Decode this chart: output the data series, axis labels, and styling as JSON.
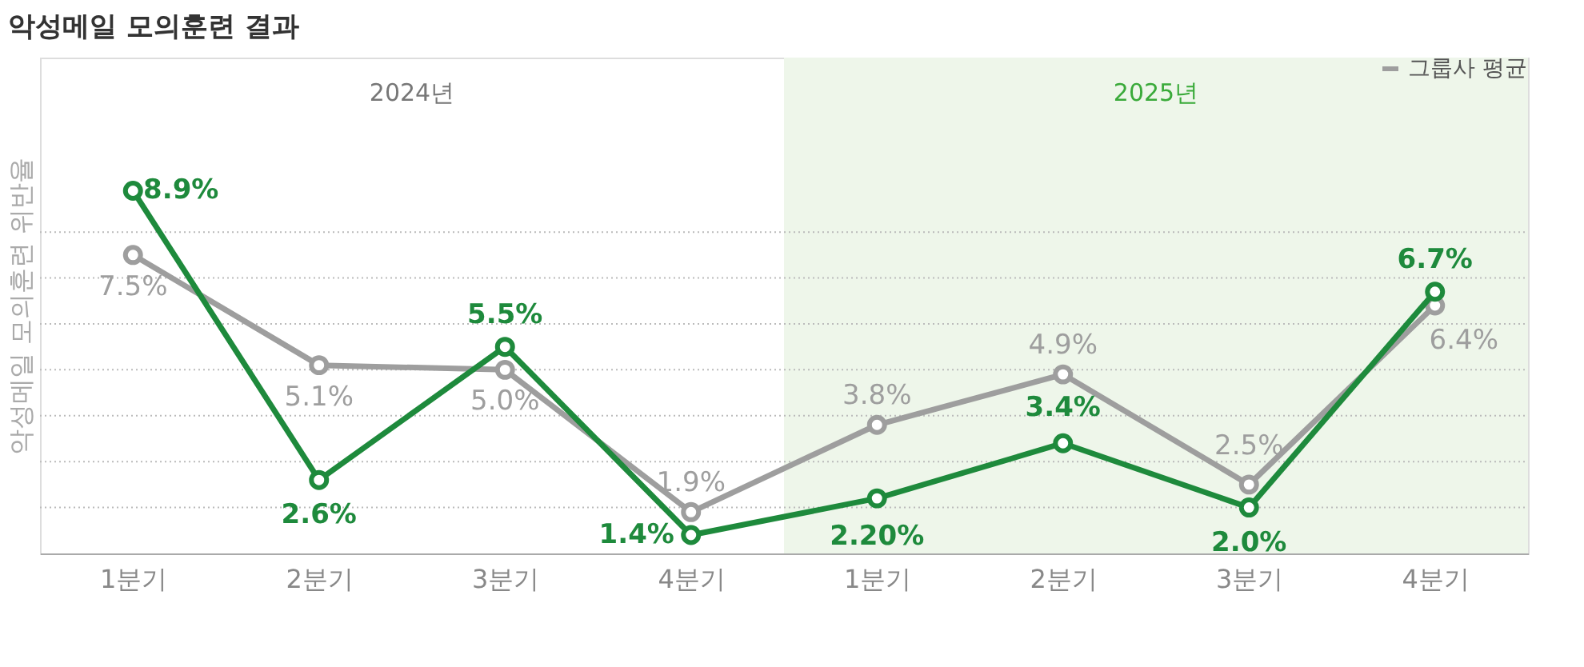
{
  "chart_data": {
    "type": "line",
    "title": "악성메일 모의훈련 결과",
    "ylabel": "악성메일 모의훈련 위반율",
    "categories": [
      "1분기",
      "2분기",
      "3분기",
      "4분기",
      "1분기",
      "2분기",
      "3분기",
      "4분기"
    ],
    "series": [
      {
        "name": "그룹사 평균",
        "color": "#9e9e9e",
        "values": [
          7.5,
          5.1,
          5.0,
          1.9,
          3.8,
          4.9,
          2.5,
          6.4
        ],
        "value_labels": [
          "7.5%",
          "5.1%",
          "5.0%",
          "1.9%",
          "3.8%",
          "4.9%",
          "2.5%",
          "6.4%"
        ]
      },
      {
        "color": "#1e8a3c",
        "values": [
          8.9,
          2.6,
          5.5,
          1.4,
          2.2,
          3.4,
          2.0,
          6.7
        ],
        "value_labels": [
          "8.9%",
          "2.6%",
          "5.5%",
          "1.4%",
          "2.20%",
          "3.4%",
          "2.0%",
          "6.7%"
        ]
      }
    ],
    "ylim": [
      1,
      11.8
    ],
    "yticks": [
      {
        "value": 2,
        "label": null
      },
      {
        "value": 3,
        "label": null
      },
      {
        "value": 4,
        "label": null
      },
      {
        "value": 5,
        "label": null
      },
      {
        "value": 6,
        "label": null
      },
      {
        "value": 7,
        "label": null
      },
      {
        "value": 8,
        "label": null
      }
    ],
    "annotations": [
      "2024년",
      "2025년"
    ],
    "grid": "y",
    "tick_labels": "x",
    "legend": "top right",
    "marker": "circle",
    "line_style": "solid"
  }
}
